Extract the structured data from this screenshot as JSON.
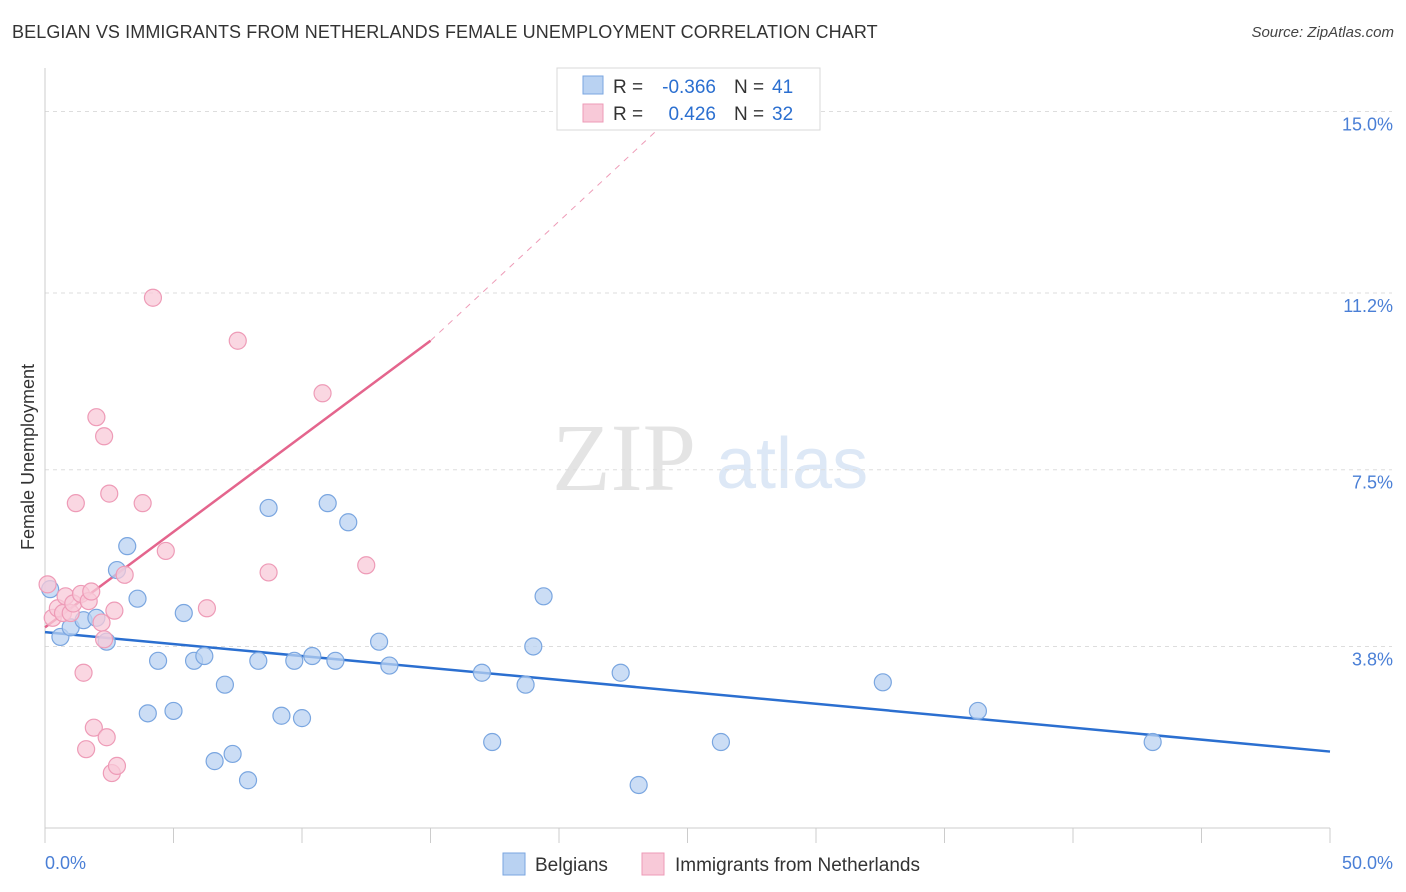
{
  "title": "BELGIAN VS IMMIGRANTS FROM NETHERLANDS FEMALE UNEMPLOYMENT CORRELATION CHART",
  "source": "Source: ZipAtlas.com",
  "watermark": {
    "zip": "ZIP",
    "atlas": "atlas"
  },
  "colors": {
    "blue_fill": "#b9d2f2",
    "blue_stroke": "#7aa6e0",
    "blue_line": "#2b6fd0",
    "pink_fill": "#f8c9d8",
    "pink_stroke": "#ee9bb7",
    "pink_line": "#e4658d",
    "grid": "#dddddd",
    "axis": "#cccccc",
    "tick_text": "#4a7fd6"
  },
  "stats": [
    {
      "r_label": "R =",
      "r_value": "-0.366",
      "n_label": "N =",
      "n_value": "41",
      "color": "blue"
    },
    {
      "r_label": "R =",
      "r_value": "0.426",
      "n_label": "N =",
      "n_value": "32",
      "color": "pink"
    }
  ],
  "chart_data": {
    "type": "scatter",
    "title": "BELGIAN VS IMMIGRANTS FROM NETHERLANDS FEMALE UNEMPLOYMENT CORRELATION CHART",
    "xlabel": "",
    "ylabel": "Female Unemployment",
    "xlim": [
      0,
      50
    ],
    "ylim": [
      0,
      15.7
    ],
    "x_tick_labels": [
      "0.0%",
      "50.0%"
    ],
    "y_ticks": [
      3.8,
      7.5,
      11.2,
      15.0
    ],
    "y_tick_labels": [
      "3.8%",
      "7.5%",
      "11.2%",
      "15.0%"
    ],
    "grid": true,
    "legend_position": "bottom",
    "series": [
      {
        "name": "Belgians",
        "color": "blue",
        "points": [
          [
            0.2,
            5.0
          ],
          [
            0.6,
            4.0
          ],
          [
            1.0,
            4.2
          ],
          [
            1.5,
            4.35
          ],
          [
            2.0,
            4.4
          ],
          [
            2.4,
            3.9
          ],
          [
            2.8,
            5.4
          ],
          [
            3.2,
            5.9
          ],
          [
            3.6,
            4.8
          ],
          [
            4.0,
            2.4
          ],
          [
            4.4,
            3.5
          ],
          [
            5.0,
            2.45
          ],
          [
            5.4,
            4.5
          ],
          [
            5.8,
            3.5
          ],
          [
            6.2,
            3.6
          ],
          [
            6.6,
            1.4
          ],
          [
            7.0,
            3.0
          ],
          [
            7.3,
            1.55
          ],
          [
            7.9,
            1.0
          ],
          [
            8.3,
            3.5
          ],
          [
            8.7,
            6.7
          ],
          [
            9.2,
            2.35
          ],
          [
            9.7,
            3.5
          ],
          [
            10.0,
            2.3
          ],
          [
            10.4,
            3.6
          ],
          [
            11.0,
            6.8
          ],
          [
            11.3,
            3.5
          ],
          [
            11.8,
            6.4
          ],
          [
            13.0,
            3.9
          ],
          [
            13.4,
            3.4
          ],
          [
            17.0,
            3.25
          ],
          [
            17.4,
            1.8
          ],
          [
            18.7,
            3.0
          ],
          [
            19.0,
            3.8
          ],
          [
            19.4,
            4.85
          ],
          [
            22.4,
            3.25
          ],
          [
            23.1,
            0.9
          ],
          [
            26.3,
            1.8
          ],
          [
            32.6,
            3.05
          ],
          [
            36.3,
            2.45
          ],
          [
            43.1,
            1.8
          ]
        ],
        "trend": [
          [
            0,
            4.1
          ],
          [
            50,
            1.6
          ]
        ]
      },
      {
        "name": "Immigrants from Netherlands",
        "color": "pink",
        "points": [
          [
            0.1,
            5.1
          ],
          [
            0.3,
            4.4
          ],
          [
            0.5,
            4.6
          ],
          [
            0.7,
            4.5
          ],
          [
            0.8,
            4.85
          ],
          [
            1.0,
            4.5
          ],
          [
            1.1,
            4.7
          ],
          [
            1.2,
            6.8
          ],
          [
            1.4,
            4.9
          ],
          [
            1.5,
            3.25
          ],
          [
            1.6,
            1.65
          ],
          [
            1.7,
            4.75
          ],
          [
            1.8,
            4.95
          ],
          [
            1.9,
            2.1
          ],
          [
            2.0,
            8.6
          ],
          [
            2.2,
            4.3
          ],
          [
            2.3,
            3.95
          ],
          [
            2.3,
            8.2
          ],
          [
            2.4,
            1.9
          ],
          [
            2.5,
            7.0
          ],
          [
            2.6,
            1.15
          ],
          [
            2.7,
            4.55
          ],
          [
            2.8,
            1.3
          ],
          [
            3.1,
            5.3
          ],
          [
            3.8,
            6.8
          ],
          [
            4.2,
            11.1
          ],
          [
            4.7,
            5.8
          ],
          [
            6.3,
            4.6
          ],
          [
            7.5,
            10.2
          ],
          [
            8.7,
            5.35
          ],
          [
            10.8,
            9.1
          ],
          [
            12.5,
            5.5
          ]
        ],
        "trend": [
          [
            0,
            4.2
          ],
          [
            15,
            10.2
          ]
        ],
        "trend_extension": [
          [
            15,
            10.2
          ],
          [
            26,
            15.7
          ]
        ]
      }
    ]
  },
  "legend": [
    {
      "label": "Belgians",
      "color": "blue"
    },
    {
      "label": "Immigrants from Netherlands",
      "color": "pink"
    }
  ]
}
